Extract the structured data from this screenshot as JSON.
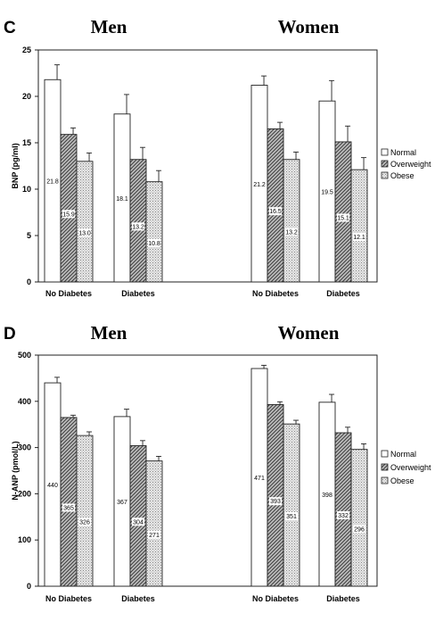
{
  "chart_data": [
    {
      "type": "bar",
      "panel_label": "C",
      "group_titles": [
        "Men",
        "Women"
      ],
      "categories": [
        "No Diabetes",
        "Diabetes",
        "No Diabetes",
        "Diabetes"
      ],
      "ylabel": "BNP (pg/ml)",
      "ylim": [
        0,
        25
      ],
      "yticks": [
        "0",
        "5",
        "10",
        "15",
        "20",
        "25"
      ],
      "legend_position": "right",
      "series": [
        {
          "name": "Normal",
          "values": [
            21.8,
            18.1,
            21.2,
            19.5
          ],
          "errors": [
            1.6,
            2.1,
            1.0,
            2.2
          ],
          "labels": [
            "21.8",
            "18.1",
            "21.2",
            "19.5"
          ],
          "pattern": "white"
        },
        {
          "name": "Overweight",
          "values": [
            15.9,
            13.2,
            16.5,
            15.1
          ],
          "errors": [
            0.7,
            1.3,
            0.7,
            1.7
          ],
          "labels": [
            "15.9",
            "13.2",
            "16.5",
            "15.1"
          ],
          "pattern": "hatch"
        },
        {
          "name": "Obese",
          "values": [
            13.0,
            10.8,
            13.2,
            12.1
          ],
          "errors": [
            0.9,
            1.2,
            0.8,
            1.3
          ],
          "labels": [
            "13.0",
            "10.8",
            "13.2",
            "12.1"
          ],
          "pattern": "dots"
        }
      ]
    },
    {
      "type": "bar",
      "panel_label": "D",
      "group_titles": [
        "Men",
        "Women"
      ],
      "categories": [
        "No Diabetes",
        "Diabetes",
        "No Diabetes",
        "Diabetes"
      ],
      "ylabel": "N-ANP (pmol/L)",
      "ylim": [
        0,
        500
      ],
      "yticks": [
        "0",
        "100",
        "200",
        "300",
        "400",
        "500"
      ],
      "legend_position": "right",
      "series": [
        {
          "name": "Normal",
          "values": [
            440,
            367,
            471,
            398
          ],
          "errors": [
            12,
            16,
            7,
            17
          ],
          "labels": [
            "440",
            "367",
            "471",
            "398"
          ],
          "pattern": "white"
        },
        {
          "name": "Overweight",
          "values": [
            365,
            304,
            393,
            332
          ],
          "errors": [
            5,
            11,
            6,
            12
          ],
          "labels": [
            "365",
            "304",
            "393",
            "332"
          ],
          "pattern": "hatch"
        },
        {
          "name": "Obese",
          "values": [
            326,
            271,
            351,
            296
          ],
          "errors": [
            8,
            10,
            8,
            12
          ],
          "labels": [
            "326",
            "271",
            "351",
            "296"
          ],
          "pattern": "dots"
        }
      ]
    }
  ]
}
